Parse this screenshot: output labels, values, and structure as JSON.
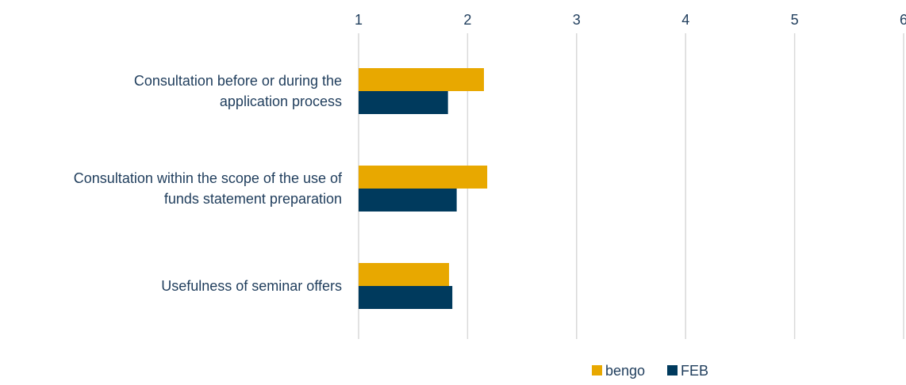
{
  "chart_data": {
    "type": "bar",
    "orientation": "horizontal",
    "categories": [
      [
        "Consultation before or during the",
        "application process"
      ],
      [
        "Consultation within the scope of the use of",
        "funds statement preparation"
      ],
      [
        "Usefulness of seminar offers"
      ]
    ],
    "series": [
      {
        "name": "bengo",
        "color": "#e8a800",
        "values": [
          2.15,
          2.18,
          1.83
        ]
      },
      {
        "name": "FEB",
        "color": "#003a5d",
        "values": [
          1.82,
          1.9,
          1.86
        ]
      }
    ],
    "xlim": [
      1,
      6
    ],
    "x_ticks": [
      "1",
      "2",
      "3",
      "4",
      "5",
      "6"
    ],
    "axis_position": "top",
    "grid": true,
    "legend_position": "bottom"
  }
}
